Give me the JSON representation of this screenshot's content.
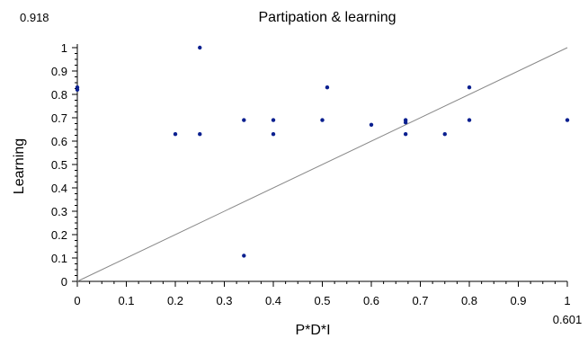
{
  "chart_data": {
    "type": "scatter",
    "title": "Partipation & learning",
    "corner_top_left": "0.918",
    "corner_bottom_right": "0.601",
    "xlabel": "P*D*I",
    "ylabel": "Learning",
    "xlim": [
      0,
      1
    ],
    "ylim": [
      0,
      1
    ],
    "x_ticks": [
      "0",
      "0.1",
      "0.2",
      "0.3",
      "0.4",
      "0.5",
      "0.6",
      "0.7",
      "0.8",
      "0.9",
      "1"
    ],
    "y_ticks": [
      "0",
      "0.1",
      "0.2",
      "0.3",
      "0.4",
      "0.5",
      "0.6",
      "0.7",
      "0.8",
      "0.9",
      "1"
    ],
    "grid": false,
    "reference_line": {
      "x": [
        0,
        1
      ],
      "y": [
        0,
        1
      ]
    },
    "points": [
      {
        "x": 0.0,
        "y": 0.83
      },
      {
        "x": 0.0,
        "y": 0.82
      },
      {
        "x": 0.2,
        "y": 0.63
      },
      {
        "x": 0.25,
        "y": 1.0
      },
      {
        "x": 0.25,
        "y": 0.63
      },
      {
        "x": 0.34,
        "y": 0.69
      },
      {
        "x": 0.34,
        "y": 0.11
      },
      {
        "x": 0.4,
        "y": 0.69
      },
      {
        "x": 0.4,
        "y": 0.63
      },
      {
        "x": 0.5,
        "y": 0.69
      },
      {
        "x": 0.51,
        "y": 0.83
      },
      {
        "x": 0.6,
        "y": 0.67
      },
      {
        "x": 0.67,
        "y": 0.69
      },
      {
        "x": 0.67,
        "y": 0.68
      },
      {
        "x": 0.67,
        "y": 0.63
      },
      {
        "x": 0.75,
        "y": 0.63
      },
      {
        "x": 0.8,
        "y": 0.83
      },
      {
        "x": 0.8,
        "y": 0.69
      },
      {
        "x": 1.0,
        "y": 0.69
      }
    ],
    "point_color": "#0a1f8f",
    "line_color": "#888888"
  }
}
